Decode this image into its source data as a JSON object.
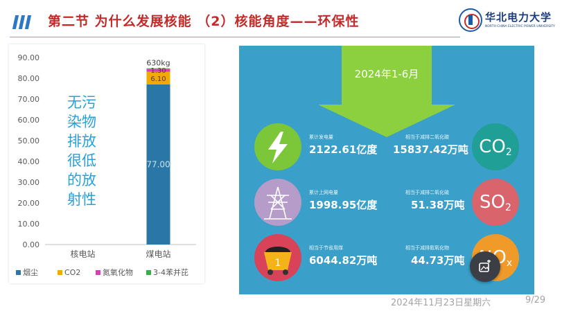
{
  "header": {
    "title": "第二节  为什么发展核能  （2）核能角度——环保性",
    "logo_text": "华北电力大学",
    "logo_subtitle": "NORTH CHINA ELECTRIC POWER UNIVERSITY"
  },
  "chart_data": {
    "type": "bar",
    "stacked": true,
    "categories": [
      "核电站",
      "煤电站"
    ],
    "series": [
      {
        "name": "烟尘",
        "values": [
          0,
          77.0
        ],
        "color": "#2a77a7"
      },
      {
        "name": "CO2",
        "values": [
          0,
          6.1
        ],
        "color": "#f2a900"
      },
      {
        "name": "氮氧化物",
        "values": [
          0,
          1.3
        ],
        "color": "#d63fb6"
      },
      {
        "name": "3-4苯并芘",
        "values": [
          0,
          0.4
        ],
        "color": "#3aae4a"
      }
    ],
    "data_labels": [
      "77.00",
      "6.10",
      "1.30"
    ],
    "top_label": "630kg",
    "yticks": [
      "90.00",
      "80.00",
      "70.00",
      "60.00",
      "50.00",
      "40.00",
      "30.00",
      "20.00",
      "10.00",
      "0.00"
    ],
    "ylim": [
      0,
      90
    ],
    "grid": false,
    "legend_position": "bottom"
  },
  "overlay_text": [
    "无污",
    "染物",
    "排放",
    "很低",
    "的放",
    "射性"
  ],
  "infographic": {
    "period": "2024年1-6月",
    "rows": [
      {
        "icon": "lightning-icon",
        "left_label": "累计发电量",
        "left_value": "2122.61亿度",
        "right_label": "相当于减排二氧化碳",
        "right_value": "15837.42万吨",
        "badge_main": "CO",
        "badge_sub": "2"
      },
      {
        "icon": "transmission-tower-icon",
        "left_label": "累计上网电量",
        "left_value": "1998.95亿度",
        "right_label": "相当于减排二氧化硫",
        "right_value": "51.38万吨",
        "badge_main": "SO",
        "badge_sub": "2"
      },
      {
        "icon": "coal-cart-icon",
        "left_label": "相当于节省用煤",
        "left_value": "6044.82万吨",
        "right_label": "相当于减排氮氧化物",
        "right_value": "44.73万吨",
        "badge_main": "NO",
        "badge_sub": "x"
      }
    ],
    "colors": {
      "background": "#3a9fc9",
      "arrow": "#8ccf3f",
      "green_circle": "#7cc63a",
      "purple_circle": "#b59cc9",
      "red_circle": "#d9435a",
      "co2_circle": "#1f9f95",
      "so2_circle": "#d9646c",
      "nox_circle": "#f09a2a"
    }
  },
  "cart_number": "1",
  "footer": {
    "date": "2024年11月23日星期六",
    "page": "9/29"
  }
}
